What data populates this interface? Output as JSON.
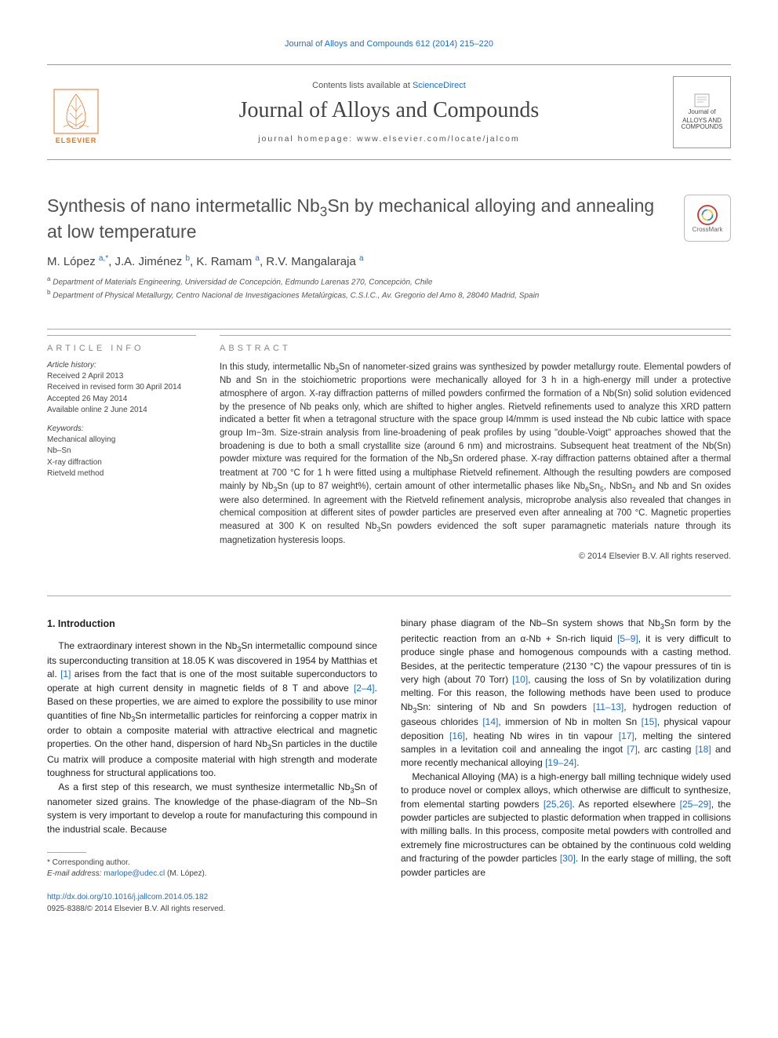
{
  "top_citation": "Journal of Alloys and Compounds 612 (2014) 215–220",
  "header": {
    "contents_line_prefix": "Contents lists available at ",
    "contents_line_link": "ScienceDirect",
    "journal_title": "Journal of Alloys and Compounds",
    "homepage_prefix": "journal homepage: ",
    "homepage_url": "www.elsevier.com/locate/jalcom",
    "elsevier_text": "ELSEVIER",
    "cover_label_top": "Journal of",
    "cover_label_main": "ALLOYS AND COMPOUNDS",
    "crossmark_label": "CrossMark"
  },
  "article": {
    "title_html": "Synthesis of nano intermetallic Nb<sub>3</sub>Sn by mechanical alloying and annealing at low temperature",
    "authors_html": "M. López <span class=\"sup\">a,*</span>, J.A. Jiménez <span class=\"sup\">b</span>, K. Ramam <span class=\"sup\">a</span>, R.V. Mangalaraja <span class=\"sup\">a</span>",
    "affiliations": [
      "a Department of Materials Engineering, Universidad de Concepción, Edmundo Larenas 270, Concepción, Chile",
      "b Department of Physical Metallurgy, Centro Nacional de Investigaciones Metalúrgicas, C.S.I.C., Av. Gregorio del Amo 8, 28040 Madrid, Spain"
    ]
  },
  "info": {
    "heading": "ARTICLE INFO",
    "history_heading": "Article history:",
    "history": [
      "Received 2 April 2013",
      "Received in revised form 30 April 2014",
      "Accepted 26 May 2014",
      "Available online 2 June 2014"
    ],
    "keywords_heading": "Keywords:",
    "keywords": [
      "Mechanical alloying",
      "Nb–Sn",
      "X-ray diffraction",
      "Rietveld method"
    ]
  },
  "abstract": {
    "heading": "ABSTRACT",
    "text_html": "In this study, intermetallic Nb<sub>3</sub>Sn of nanometer-sized grains was synthesized by powder metallurgy route. Elemental powders of Nb and Sn in the stoichiometric proportions were mechanically alloyed for 3 h in a high-energy mill under a protective atmosphere of argon. X-ray diffraction patterns of milled powders confirmed the formation of a Nb(Sn) solid solution evidenced by the presence of Nb peaks only, which are shifted to higher angles. Rietveld refinements used to analyze this XRD pattern indicated a better fit when a tetragonal structure with the space group I4/mmm is used instead the Nb cubic lattice with space group Im−3m. Size-strain analysis from line-broadening of peak profiles by using \"double-Voigt\" approaches showed that the broadening is due to both a small crystallite size (around 6 nm) and microstrains. Subsequent heat treatment of the Nb(Sn) powder mixture was required for the formation of the Nb<sub>3</sub>Sn ordered phase. X-ray diffraction patterns obtained after a thermal treatment at 700 °C for 1 h were fitted using a multiphase Rietveld refinement. Although the resulting powders are composed mainly by Nb<sub>3</sub>Sn (up to 87 weight%), certain amount of other intermetallic phases like Nb<sub>6</sub>Sn<sub>5</sub>, NbSn<sub>2</sub> and Nb and Sn oxides were also determined. In agreement with the Rietveld refinement analysis, microprobe analysis also revealed that changes in chemical composition at different sites of powder particles are preserved even after annealing at 700 °C. Magnetic properties measured at 300 K on resulted Nb<sub>3</sub>Sn powders evidenced the soft super paramagnetic materials nature through its magnetization hysteresis loops.",
    "copyright": "© 2014 Elsevier B.V. All rights reserved."
  },
  "body": {
    "section_heading": "1. Introduction",
    "col1_p1_html": "The extraordinary interest shown in the Nb<sub>3</sub>Sn intermetallic compound since its superconducting transition at 18.05 K was discovered in 1954 by Matthias et al. <span class=\"ref-link\">[1]</span> arises from the fact that is one of the most suitable superconductors to operate at high current density in magnetic fields of 8 T and above <span class=\"ref-link\">[2–4]</span>. Based on these properties, we are aimed to explore the possibility to use minor quantities of fine Nb<sub>3</sub>Sn intermetallic particles for reinforcing a copper matrix in order to obtain a composite material with attractive electrical and magnetic properties. On the other hand, dispersion of hard Nb<sub>3</sub>Sn particles in the ductile Cu matrix will produce a composite material with high strength and moderate toughness for structural applications too.",
    "col1_p2_html": "As a first step of this research, we must synthesize intermetallic Nb<sub>3</sub>Sn of nanometer sized grains. The knowledge of the phase-diagram of the Nb–Sn system is very important to develop a route for manufacturing this compound in the industrial scale. Because",
    "col2_p1_html": "binary phase diagram of the Nb–Sn system shows that Nb<sub>3</sub>Sn form by the peritectic reaction from an α-Nb + Sn-rich liquid <span class=\"ref-link\">[5–9]</span>, it is very difficult to produce single phase and homogenous compounds with a casting method. Besides, at the peritectic temperature (2130 °C) the vapour pressures of tin is very high (about 70 Torr) <span class=\"ref-link\">[10]</span>, causing the loss of Sn by volatilization during melting. For this reason, the following methods have been used to produce Nb<sub>3</sub>Sn: sintering of Nb and Sn powders <span class=\"ref-link\">[11–13]</span>, hydrogen reduction of gaseous chlorides <span class=\"ref-link\">[14]</span>, immersion of Nb in molten Sn <span class=\"ref-link\">[15]</span>, physical vapour deposition <span class=\"ref-link\">[16]</span>, heating Nb wires in tin vapour <span class=\"ref-link\">[17]</span>, melting the sintered samples in a levitation coil and annealing the ingot <span class=\"ref-link\">[7]</span>, arc casting <span class=\"ref-link\">[18]</span> and more recently mechanical alloying <span class=\"ref-link\">[19–24]</span>.",
    "col2_p2_html": "Mechanical Alloying (MA) is a high-energy ball milling technique widely used to produce novel or complex alloys, which otherwise are difficult to synthesize, from elemental starting powders <span class=\"ref-link\">[25,26]</span>. As reported elsewhere <span class=\"ref-link\">[25–29]</span>, the powder particles are subjected to plastic deformation when trapped in collisions with milling balls. In this process, composite metal powders with controlled and extremely fine microstructures can be obtained by the continuous cold welding and fracturing of the powder particles <span class=\"ref-link\">[30]</span>. In the early stage of milling, the soft powder particles are"
  },
  "footnote": {
    "corresponding": "* Corresponding author.",
    "email_label": "E-mail address: ",
    "email": "marlope@udec.cl",
    "email_affil": " (M. López)."
  },
  "doi": {
    "url": "http://dx.doi.org/10.1016/j.jallcom.2014.05.182",
    "issn_line": "0925-8388/© 2014 Elsevier B.V. All rights reserved."
  },
  "colors": {
    "link": "#1e6fc7",
    "elsevier_orange": "#e37422",
    "text_main": "#333333",
    "text_muted": "#888888",
    "rule": "#aaaaaa"
  },
  "typography": {
    "body_pt": 12,
    "abstract_pt": 11.5,
    "footnote_pt": 10,
    "title_pt": 23,
    "journal_title_pt": 28,
    "font_family_body": "Arial",
    "font_family_journal": "Times New Roman"
  }
}
